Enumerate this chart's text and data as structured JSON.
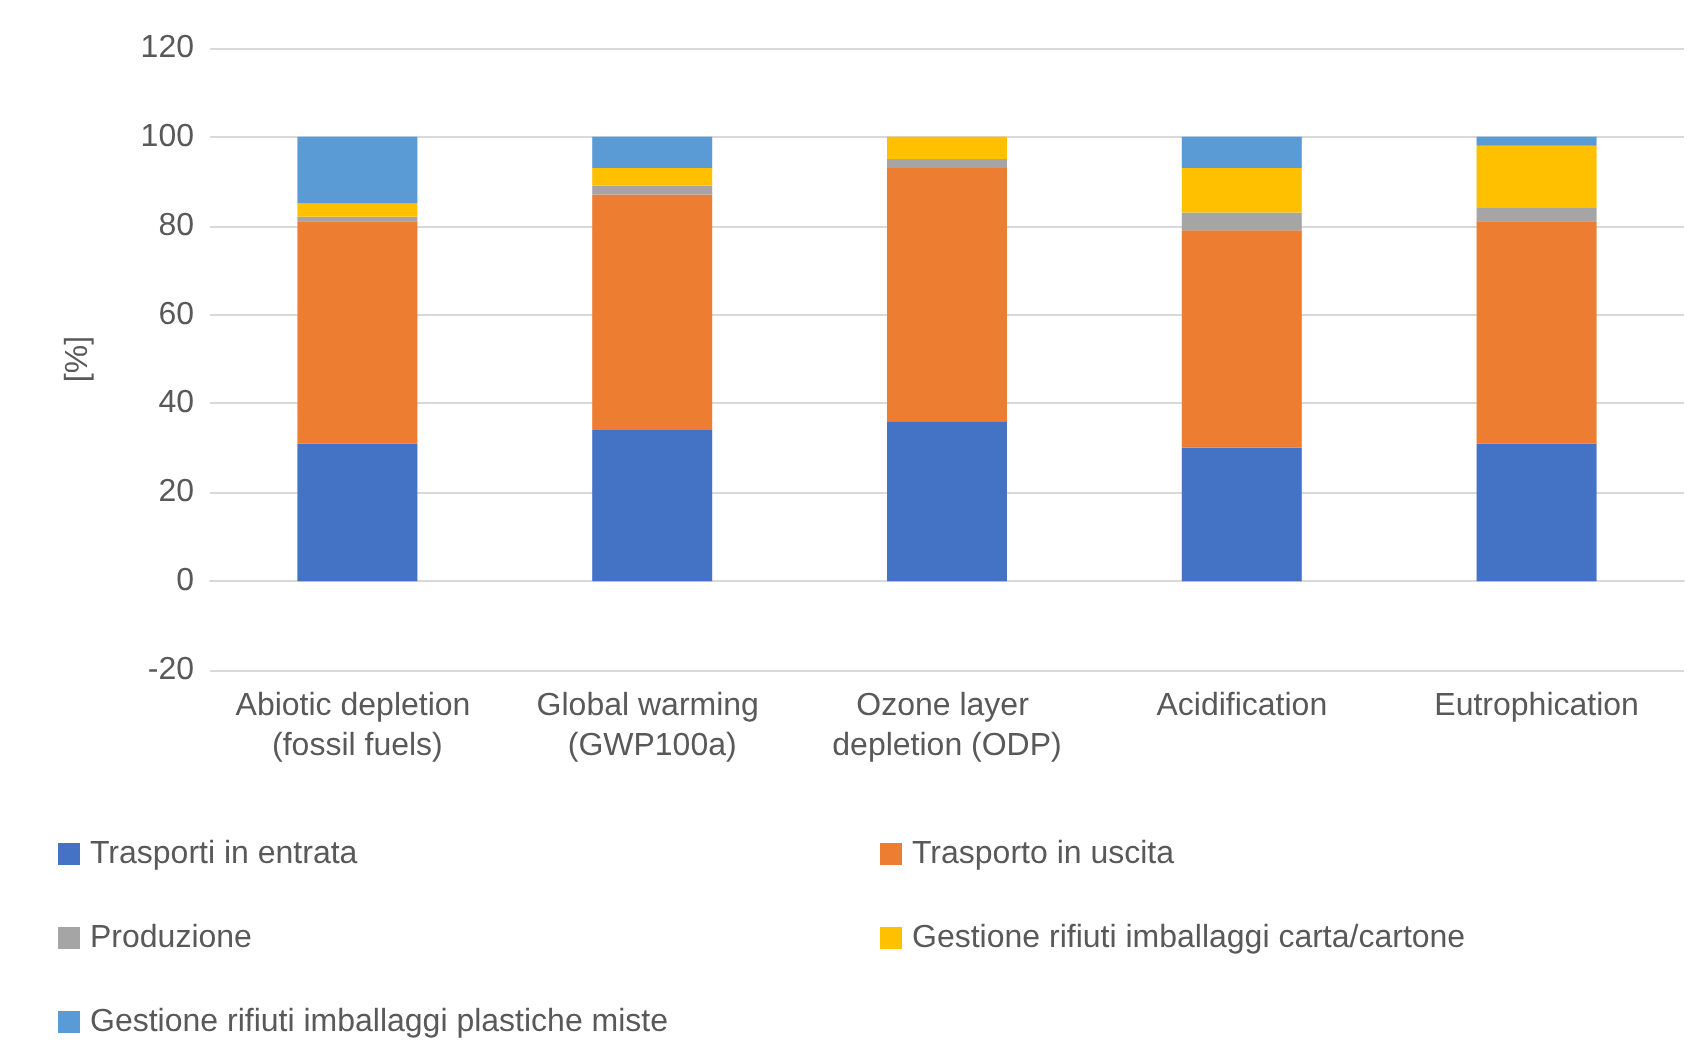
{
  "chart_data": {
    "type": "bar",
    "stacked": true,
    "ylabel": "[%]",
    "categories": [
      "Abiotic depletion (fossil fuels)",
      "Global warming (GWP100a)",
      "Ozone layer depletion (ODP)",
      "Acidification",
      "Eutrophication"
    ],
    "series": [
      {
        "name": "Trasporti in entrata",
        "color": "#4472c4",
        "values": [
          31,
          34,
          36,
          30,
          31
        ]
      },
      {
        "name": "Trasporto in uscita",
        "color": "#ed7d31",
        "values": [
          50,
          53,
          57,
          49,
          50
        ]
      },
      {
        "name": "Produzione",
        "color": "#a5a5a5",
        "values": [
          1,
          2,
          2,
          4,
          3
        ]
      },
      {
        "name": "Gestione rifiuti imballaggi carta/cartone",
        "color": "#ffc000",
        "values": [
          3,
          4,
          5,
          10,
          14
        ]
      },
      {
        "name": "Gestione rifiuti imballaggi plastiche miste",
        "color": "#5b9bd5",
        "values": [
          15,
          7,
          0,
          7,
          2
        ]
      }
    ],
    "ylim": [
      -20,
      120
    ],
    "yticks": [
      -20,
      0,
      20,
      40,
      60,
      80,
      100,
      120
    ],
    "grid": "y",
    "legend": "bottom"
  }
}
